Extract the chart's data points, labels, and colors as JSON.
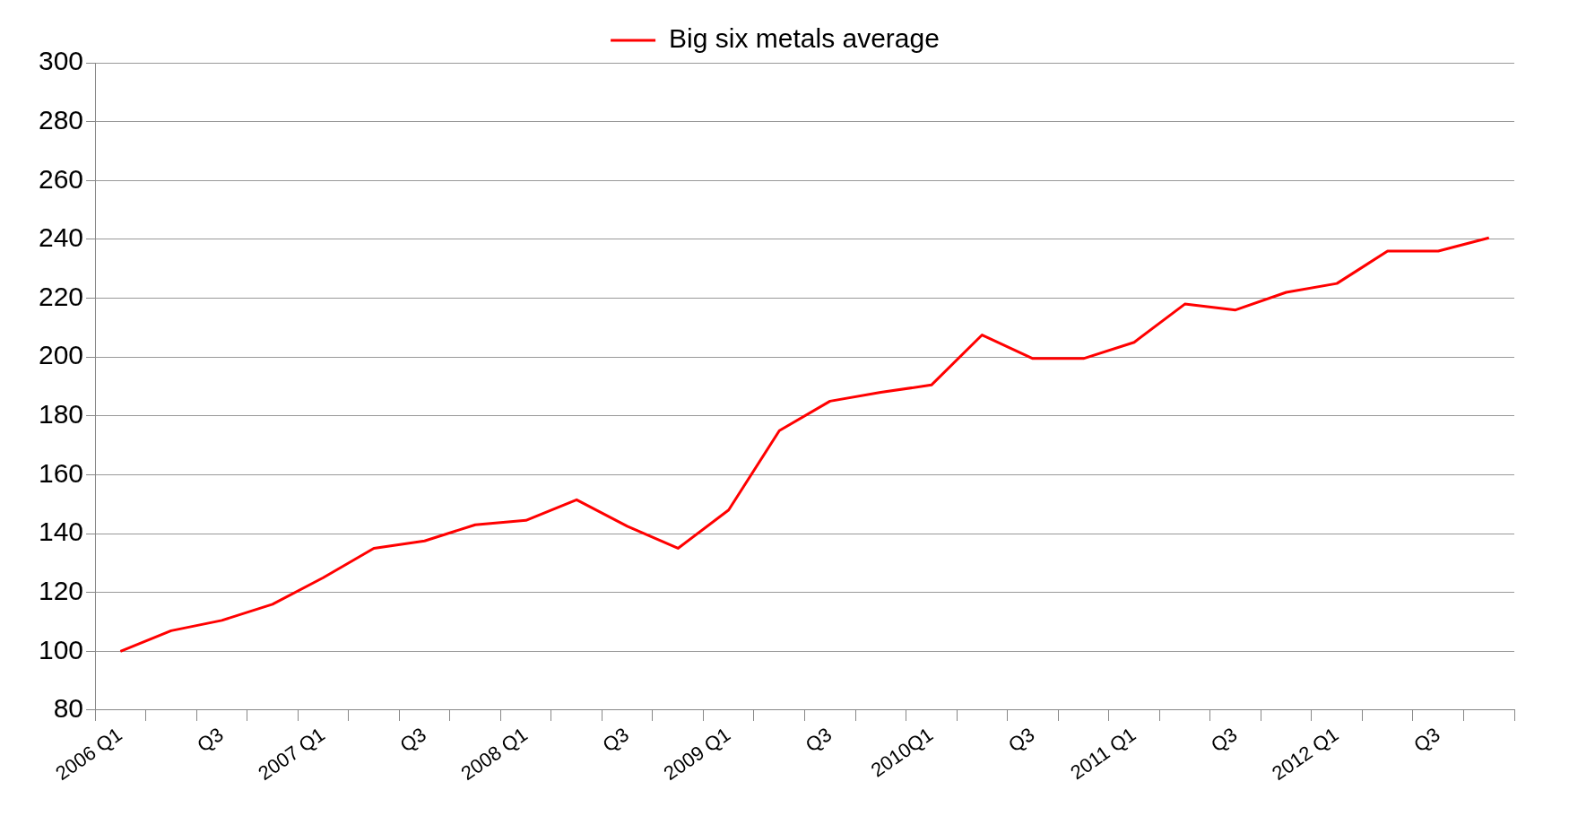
{
  "chart_data": {
    "type": "line",
    "categories": [
      "2006 Q1",
      null,
      "Q3",
      null,
      "2007 Q1",
      null,
      "Q3",
      null,
      "2008 Q1",
      null,
      "Q3",
      null,
      "2009 Q1",
      null,
      "Q3",
      null,
      "2010Q1",
      null,
      "Q3",
      null,
      "2011 Q1",
      null,
      "Q3",
      null,
      "2012 Q1",
      null,
      "Q3",
      null
    ],
    "series": [
      {
        "name": "Big six metals average",
        "color": "#ff0000",
        "values": [
          100,
          107,
          110.5,
          116,
          125,
          135,
          137.5,
          143,
          144.5,
          151.5,
          142.5,
          135,
          148,
          175,
          185,
          188,
          190.5,
          207.5,
          199.5,
          199.5,
          205,
          218,
          216,
          222,
          225,
          236,
          236,
          240.5
        ]
      }
    ],
    "ylim": [
      80,
      300
    ],
    "yticks": [
      80,
      100,
      120,
      140,
      160,
      180,
      200,
      220,
      240,
      260,
      280,
      300
    ],
    "grid": "y",
    "legend": "top",
    "marker": "none",
    "line_style": "solid"
  }
}
